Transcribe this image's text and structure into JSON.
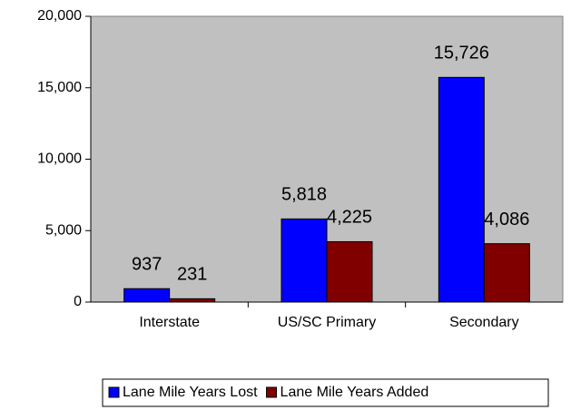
{
  "chart_data": {
    "type": "bar",
    "categories": [
      "Interstate",
      "US/SC Primary",
      "Secondary"
    ],
    "series": [
      {
        "name": "Lane Mile Years Lost",
        "color": "#0000ff",
        "values": [
          937,
          5818,
          15726
        ],
        "value_labels": [
          "937",
          "5,818",
          "15,726"
        ]
      },
      {
        "name": "Lane Mile Years Added",
        "color": "#800000",
        "values": [
          231,
          4225,
          4086
        ],
        "value_labels": [
          "231",
          "4,225",
          "4,086"
        ]
      }
    ],
    "ylim": [
      0,
      20000
    ],
    "yticks": [
      0,
      {
        "value": 5000,
        "label": "5,000"
      },
      {
        "value": 10000,
        "label": "10,000"
      },
      {
        "value": 15000,
        "label": "15,000"
      },
      {
        "value": 20000,
        "label": "20,000"
      }
    ],
    "plot_background": "#c0c0c0",
    "grid": false,
    "legend": "bottom"
  }
}
